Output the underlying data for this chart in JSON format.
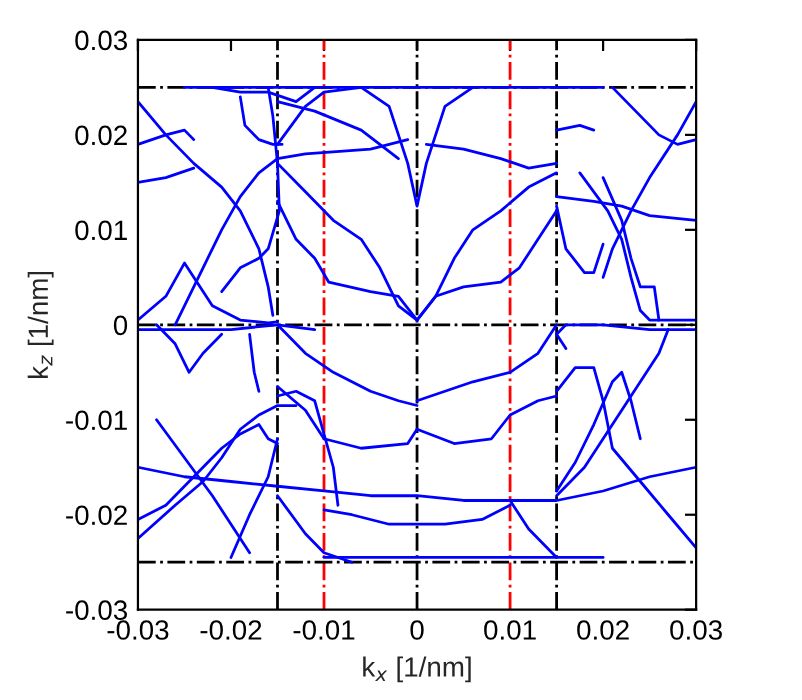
{
  "chart_data": {
    "type": "line",
    "xlabel": "k$_{x}$ [1/nm]",
    "ylabel": "k$_{z}$ [1/nm]",
    "xlim": [
      -0.03,
      0.03
    ],
    "ylim": [
      -0.03,
      0.03
    ],
    "xticks": [
      -0.03,
      -0.02,
      -0.01,
      0,
      0.01,
      0.02,
      0.03
    ],
    "yticks": [
      -0.03,
      -0.02,
      -0.01,
      0,
      0.01,
      0.02,
      0.03
    ],
    "grid": false,
    "legend": false,
    "marker": "none",
    "line_style": "solid",
    "ref_lines": [
      {
        "axis": "x",
        "value": -0.015,
        "color": "#000000",
        "line_style": "dashdot"
      },
      {
        "axis": "x",
        "value": 0,
        "color": "#000000",
        "line_style": "dashdot"
      },
      {
        "axis": "x",
        "value": 0.015,
        "color": "#000000",
        "line_style": "dashdot"
      },
      {
        "axis": "x",
        "value": -0.01,
        "color": "#ff0000",
        "line_style": "dashdot"
      },
      {
        "axis": "x",
        "value": 0.01,
        "color": "#ff0000",
        "line_style": "dashdot"
      },
      {
        "axis": "y",
        "value": 0.025,
        "color": "#000000",
        "line_style": "dashdot"
      },
      {
        "axis": "y",
        "value": 0,
        "color": "#000000",
        "line_style": "dashdot"
      },
      {
        "axis": "y",
        "value": -0.025,
        "color": "#000000",
        "line_style": "dashdot"
      }
    ],
    "series": [
      {
        "color": "#0000ff",
        "x": [
          -0.03,
          -0.027,
          -0.024,
          -0.021,
          -0.019,
          -0.017,
          -0.016,
          -0.0155
        ],
        "values": [
          0.0235,
          0.02,
          0.017,
          0.0145,
          0.012,
          0.008,
          0.004,
          0.001
        ]
      },
      {
        "color": "#0000ff",
        "x": [
          -0.03,
          -0.027,
          -0.025,
          -0.024
        ],
        "values": [
          0.019,
          0.02,
          0.0205,
          0.0195
        ]
      },
      {
        "color": "#0000ff",
        "x": [
          -0.03,
          -0.027,
          -0.024
        ],
        "values": [
          0.015,
          0.0155,
          0.0165
        ]
      },
      {
        "color": "#0000ff",
        "x": [
          -0.03,
          -0.027,
          -0.025,
          -0.024,
          -0.022,
          -0.019,
          -0.016,
          -0.015
        ],
        "values": [
          0.0005,
          0.003,
          0.0065,
          0.005,
          0.002,
          0.0005,
          0.0002,
          0.0003
        ]
      },
      {
        "color": "#0000ff",
        "x": [
          -0.026,
          -0.023,
          -0.021,
          -0.019,
          -0.017,
          -0.015,
          -0.012,
          -0.005,
          -0.001
        ],
        "values": [
          0.0,
          0.006,
          0.01,
          0.0135,
          0.016,
          0.0175,
          0.018,
          0.0185,
          0.0195
        ]
      },
      {
        "color": "#0000ff",
        "x": [
          -0.022,
          -0.019,
          -0.016,
          -0.013,
          -0.011
        ],
        "values": [
          0.025,
          0.0245,
          0.0245,
          0.0235,
          0.025
        ]
      },
      {
        "color": "#0000ff",
        "x": [
          -0.019,
          -0.0185,
          -0.017,
          -0.0155,
          -0.0145
        ],
        "values": [
          0.024,
          0.021,
          0.0195,
          0.019,
          0.019
        ]
      },
      {
        "color": "#0000ff",
        "x": [
          -0.016,
          -0.0155,
          -0.015,
          -0.0148,
          -0.016,
          -0.017,
          -0.019,
          -0.021
        ],
        "values": [
          0.025,
          0.022,
          0.017,
          0.012,
          0.008,
          0.007,
          0.006,
          0.0035
        ]
      },
      {
        "color": "#0000ff",
        "x": [
          -0.015,
          -0.012,
          -0.01,
          -0.006
        ],
        "values": [
          0.019,
          0.023,
          0.0245,
          0.025
        ]
      },
      {
        "color": "#0000ff",
        "x": [
          -0.015,
          -0.012,
          -0.009,
          -0.006,
          -0.004,
          -0.002,
          0
        ],
        "values": [
          0.017,
          0.014,
          0.011,
          0.009,
          0.006,
          0.002,
          0.0005
        ]
      },
      {
        "color": "#0000ff",
        "x": [
          -0.015,
          -0.013,
          -0.011,
          -0.0095,
          -0.005,
          -0.002,
          0
        ],
        "values": [
          0.013,
          0.009,
          0.007,
          0.0045,
          0.0035,
          0.003,
          0.0005
        ]
      },
      {
        "color": "#0000ff",
        "x": [
          -0.006,
          -0.003,
          -0.001,
          0,
          0.001,
          0.003,
          0.006
        ],
        "values": [
          0.025,
          0.023,
          0.017,
          0.0125,
          0.017,
          0.023,
          0.025
        ]
      },
      {
        "color": "#0000ff",
        "x": [
          -0.015,
          -0.011,
          -0.006,
          -0.002
        ],
        "values": [
          0.0235,
          0.0225,
          0.0205,
          0.0175
        ]
      },
      {
        "color": "#0000ff",
        "x": [
          0,
          0.002,
          0.005,
          0.009,
          0.011,
          0.013,
          0.015
        ],
        "values": [
          0.0005,
          0.003,
          0.004,
          0.0045,
          0.006,
          0.009,
          0.012
        ]
      },
      {
        "color": "#0000ff",
        "x": [
          0.001,
          0.005,
          0.009,
          0.012,
          0.015
        ],
        "values": [
          0.019,
          0.0185,
          0.0175,
          0.0165,
          0.017
        ]
      },
      {
        "color": "#0000ff",
        "x": [
          0,
          0.002,
          0.004,
          0.006,
          0.009,
          0.012,
          0.015
        ],
        "values": [
          0.0005,
          0.003,
          0.007,
          0.01,
          0.012,
          0.0145,
          0.016
        ]
      },
      {
        "color": "#0000ff",
        "x": [
          0.015,
          0.016,
          0.018,
          0.019,
          0.02
        ],
        "values": [
          0.0125,
          0.008,
          0.0055,
          0.0055,
          0.0085
        ]
      },
      {
        "color": "#0000ff",
        "x": [
          0.0175,
          0.019,
          0.0205,
          0.022,
          0.023,
          0.024,
          0.025,
          0.03
        ],
        "values": [
          0.016,
          0.014,
          0.012,
          0.009,
          0.005,
          0.0015,
          0.0005,
          0.0005
        ]
      },
      {
        "color": "#0000ff",
        "x": [
          0.02,
          0.022,
          0.023,
          0.024,
          0.0255,
          0.026
        ],
        "values": [
          0.0155,
          0.011,
          0.007,
          0.004,
          0.004,
          0.0005
        ]
      },
      {
        "color": "#0000ff",
        "x": [
          0.02,
          0.021,
          0.023,
          0.025,
          0.028,
          0.03
        ],
        "values": [
          0.005,
          0.008,
          0.012,
          0.0155,
          0.02,
          0.0235
        ]
      },
      {
        "color": "#0000ff",
        "x": [
          0.021,
          0.023,
          0.026,
          0.028,
          0.03
        ],
        "values": [
          0.025,
          0.023,
          0.02,
          0.019,
          0.0195
        ]
      },
      {
        "color": "#0000ff",
        "x": [
          0.015,
          0.019,
          0.022,
          0.025,
          0.03
        ],
        "values": [
          0.0135,
          0.013,
          0.0125,
          0.0115,
          0.011
        ]
      },
      {
        "color": "#0000ff",
        "x": [
          0.015,
          0.0175,
          0.019
        ],
        "values": [
          0.0205,
          0.021,
          0.0205
        ]
      },
      {
        "color": "#0000ff",
        "x": [
          -0.025,
          0.0,
          0.02
        ],
        "values": [
          0.025,
          0.025,
          0.025
        ]
      },
      {
        "color": "#0000ff",
        "x": [
          -0.03,
          -0.02,
          -0.015,
          -0.011
        ],
        "values": [
          -0.0005,
          -0.0005,
          0.0,
          -0.0005
        ]
      },
      {
        "color": "#0000ff",
        "x": [
          -0.028,
          -0.026,
          -0.0245,
          -0.023,
          -0.021
        ],
        "values": [
          0.0,
          -0.002,
          -0.005,
          -0.003,
          -0.001
        ]
      },
      {
        "color": "#0000ff",
        "x": [
          -0.018,
          -0.0175,
          -0.017
        ],
        "values": [
          -0.001,
          -0.005,
          -0.007
        ]
      },
      {
        "color": "#0000ff",
        "x": [
          -0.015,
          -0.012,
          -0.009,
          -0.005,
          -0.002,
          0
        ],
        "values": [
          0.0,
          -0.003,
          -0.005,
          -0.007,
          -0.008,
          -0.0085
        ]
      },
      {
        "color": "#0000ff",
        "x": [
          -0.03,
          -0.025,
          -0.02,
          -0.015,
          -0.01,
          -0.005,
          0,
          0.005,
          0.01,
          0.015,
          0.02,
          0.025,
          0.03
        ],
        "values": [
          -0.015,
          -0.016,
          -0.0165,
          -0.017,
          -0.0175,
          -0.018,
          -0.018,
          -0.0185,
          -0.0185,
          -0.0185,
          -0.0175,
          -0.016,
          -0.015
        ]
      },
      {
        "color": "#0000ff",
        "x": [
          -0.03,
          -0.027,
          -0.024,
          -0.021,
          -0.019,
          -0.017,
          -0.016,
          -0.015
        ],
        "values": [
          -0.0205,
          -0.019,
          -0.016,
          -0.013,
          -0.0115,
          -0.0105,
          -0.012,
          -0.0125
        ]
      },
      {
        "color": "#0000ff",
        "x": [
          -0.03,
          -0.026,
          -0.023,
          -0.021,
          -0.019,
          -0.017,
          -0.015,
          -0.013
        ],
        "values": [
          -0.0225,
          -0.019,
          -0.0165,
          -0.014,
          -0.011,
          -0.0095,
          -0.0085,
          -0.0085
        ]
      },
      {
        "color": "#0000ff",
        "x": [
          -0.02,
          -0.018,
          -0.016,
          -0.015
        ],
        "values": [
          -0.0245,
          -0.02,
          -0.016,
          -0.012
        ]
      },
      {
        "color": "#0000ff",
        "x": [
          -0.028,
          -0.025,
          -0.022,
          -0.02,
          -0.018
        ],
        "values": [
          -0.01,
          -0.014,
          -0.018,
          -0.021,
          -0.024
        ]
      },
      {
        "color": "#0000ff",
        "x": [
          -0.015,
          -0.013,
          -0.011,
          -0.01,
          -0.009,
          -0.0085
        ],
        "values": [
          -0.0075,
          -0.007,
          -0.008,
          -0.0115,
          -0.015,
          -0.019
        ]
      },
      {
        "color": "#0000ff",
        "x": [
          -0.015,
          -0.012,
          -0.01,
          -0.006,
          -0.001,
          0
        ],
        "values": [
          -0.0065,
          -0.009,
          -0.012,
          -0.013,
          -0.0125,
          -0.011
        ]
      },
      {
        "color": "#0000ff",
        "x": [
          -0.01,
          -0.007,
          -0.003,
          0,
          0.003,
          0.007,
          0.01
        ],
        "values": [
          -0.0195,
          -0.02,
          -0.021,
          -0.021,
          -0.021,
          -0.0205,
          -0.019
        ]
      },
      {
        "color": "#0000ff",
        "x": [
          -0.015,
          -0.012,
          -0.01,
          -0.007
        ],
        "values": [
          -0.018,
          -0.022,
          -0.024,
          -0.025
        ]
      },
      {
        "color": "#0000ff",
        "x": [
          0,
          0.004,
          0.008,
          0.01,
          0.013,
          0.015
        ],
        "values": [
          -0.011,
          -0.0125,
          -0.012,
          -0.0095,
          -0.008,
          -0.0075
        ]
      },
      {
        "color": "#0000ff",
        "x": [
          0.015,
          0.013,
          0.01,
          0.006,
          0.003,
          0
        ],
        "values": [
          0.0,
          -0.003,
          -0.005,
          -0.006,
          -0.007,
          -0.008
        ]
      },
      {
        "color": "#0000ff",
        "x": [
          0.015,
          0.017,
          0.019,
          0.021,
          0.022,
          0.023,
          0.024
        ],
        "values": [
          -0.0175,
          -0.0145,
          -0.0105,
          -0.006,
          -0.005,
          -0.008,
          -0.012
        ]
      },
      {
        "color": "#0000ff",
        "x": [
          0.015,
          0.018,
          0.02,
          0.022,
          0.024,
          0.026,
          0.027
        ],
        "values": [
          -0.018,
          -0.015,
          -0.012,
          -0.009,
          -0.006,
          -0.003,
          -0.0005
        ]
      },
      {
        "color": "#0000ff",
        "x": [
          0.015,
          0.017,
          0.019,
          0.02,
          0.021,
          0.024,
          0.027,
          0.03
        ],
        "values": [
          -0.007,
          -0.0045,
          -0.0045,
          -0.008,
          -0.013,
          -0.0165,
          -0.02,
          -0.0235
        ]
      },
      {
        "color": "#0000ff",
        "x": [
          0.016,
          0.015,
          0.016,
          0.02,
          0.025,
          0.03
        ],
        "values": [
          -0.0025,
          -0.001,
          0.0,
          0.0,
          -0.0005,
          -0.0005
        ]
      },
      {
        "color": "#0000ff",
        "x": [
          0.01,
          0.012,
          0.015
        ],
        "values": [
          -0.0185,
          -0.0215,
          -0.0245
        ]
      },
      {
        "color": "#0000ff",
        "x": [
          -0.01,
          0.0,
          0.01,
          0.02
        ],
        "values": [
          -0.0245,
          -0.0245,
          -0.0245,
          -0.0245
        ]
      }
    ]
  }
}
